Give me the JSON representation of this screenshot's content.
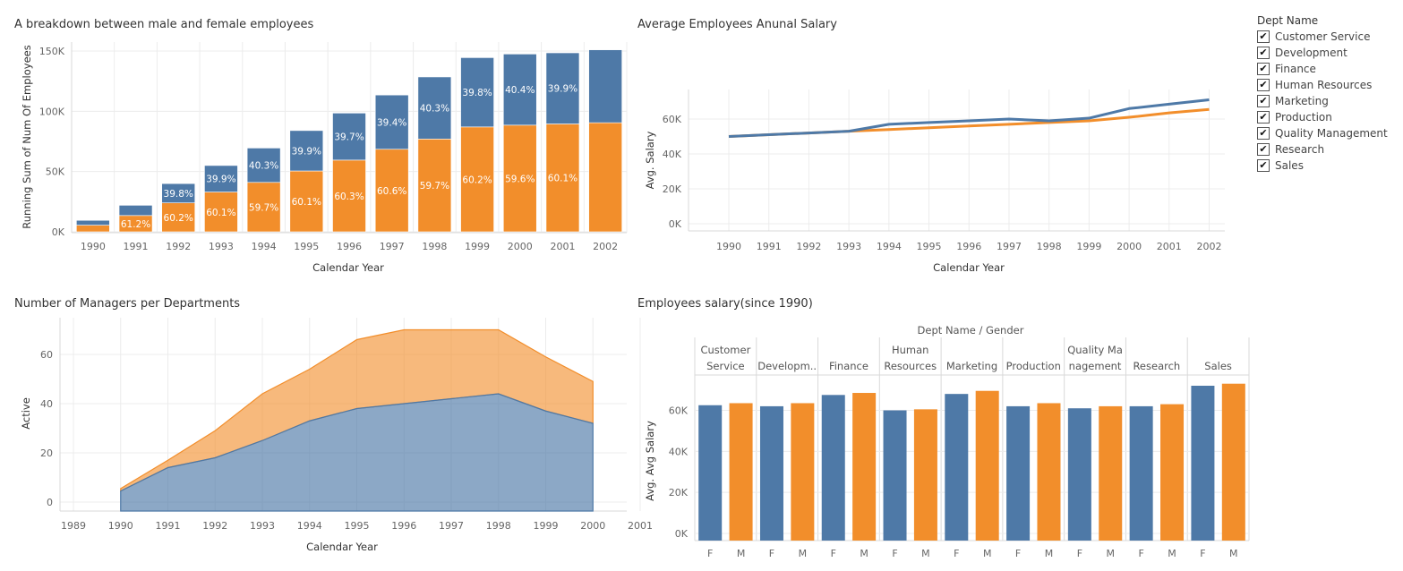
{
  "colors": {
    "female": "#4e79a7",
    "male": "#f28e2b",
    "grid": "#ececec",
    "axis": "#d9d9d9"
  },
  "legend": {
    "title": "Dept Name",
    "items": [
      {
        "label": "Customer Service",
        "checked": true
      },
      {
        "label": "Development",
        "checked": true
      },
      {
        "label": "Finance",
        "checked": true
      },
      {
        "label": "Human Resources",
        "checked": true
      },
      {
        "label": "Marketing",
        "checked": true
      },
      {
        "label": "Production",
        "checked": true
      },
      {
        "label": "Quality Management",
        "checked": true
      },
      {
        "label": "Research",
        "checked": true
      },
      {
        "label": "Sales",
        "checked": true
      }
    ],
    "check_glyph": "✔"
  },
  "chart_data": [
    {
      "id": "gender-breakdown",
      "type": "bar",
      "stacked": true,
      "title": "A breakdown between male and female employees",
      "xlabel": "Calendar Year",
      "ylabel": "Running Sum of Num Of Employees",
      "ylim": [
        0,
        150000
      ],
      "yticks": [
        {
          "v": 0,
          "label": "0K"
        },
        {
          "v": 50000,
          "label": "50K"
        },
        {
          "v": 100000,
          "label": "100K"
        },
        {
          "v": 150000,
          "label": "150K"
        }
      ],
      "grid": true,
      "categories": [
        "1990",
        "1991",
        "1992",
        "1993",
        "1994",
        "1995",
        "1996",
        "1997",
        "1998",
        "1999",
        "2000",
        "2001",
        "2002"
      ],
      "series": [
        {
          "key": "male",
          "values": [
            5500,
            13500,
            24000,
            33000,
            41000,
            50500,
            59500,
            68500,
            77000,
            87000,
            88500,
            89500,
            90500
          ],
          "labels": [
            "",
            "61.2%",
            "60.2%",
            "60.1%",
            "59.7%",
            "60.1%",
            "60.3%",
            "60.6%",
            "59.7%",
            "60.2%",
            "59.6%",
            "60.1%",
            ""
          ]
        },
        {
          "key": "female",
          "values": [
            4000,
            8500,
            16000,
            22000,
            28500,
            33500,
            39000,
            45000,
            51500,
            57500,
            59000,
            59000,
            60500
          ],
          "labels": [
            "",
            "",
            "39.8%",
            "39.9%",
            "40.3%",
            "39.9%",
            "39.7%",
            "39.4%",
            "40.3%",
            "39.8%",
            "40.4%",
            "39.9%",
            ""
          ]
        }
      ]
    },
    {
      "id": "avg-salary",
      "type": "line",
      "title": "Average Employees Anunal Salary",
      "xlabel": "Calendar Year",
      "ylabel": "Avg. Salary",
      "ylim": [
        0,
        70000
      ],
      "yticks": [
        {
          "v": 0,
          "label": "0K"
        },
        {
          "v": 20000,
          "label": "20K"
        },
        {
          "v": 40000,
          "label": "40K"
        },
        {
          "v": 60000,
          "label": "60K"
        }
      ],
      "grid": true,
      "x": [
        "1990",
        "1991",
        "1992",
        "1993",
        "1994",
        "1995",
        "1996",
        "1997",
        "1998",
        "1999",
        "2000",
        "2001",
        "2002"
      ],
      "series": [
        {
          "key": "female",
          "values": [
            50000,
            51000,
            52000,
            53000,
            57000,
            58000,
            59000,
            60000,
            59000,
            60500,
            66000,
            68500,
            71000
          ]
        },
        {
          "key": "male",
          "values": [
            50000,
            51000,
            52000,
            53000,
            54000,
            55000,
            56000,
            57000,
            58000,
            59000,
            61000,
            63500,
            65500
          ]
        }
      ]
    },
    {
      "id": "managers",
      "type": "area",
      "stacked": true,
      "title": "Number of Managers per Departments",
      "xlabel": "Calendar Year",
      "ylabel": "Active",
      "ylim": [
        -2,
        72
      ],
      "yticks": [
        {
          "v": 0,
          "label": "0"
        },
        {
          "v": 20,
          "label": "20"
        },
        {
          "v": 40,
          "label": "40"
        },
        {
          "v": 60,
          "label": "60"
        }
      ],
      "grid": true,
      "x_ticks": [
        "1989",
        "1990",
        "1991",
        "1992",
        "1993",
        "1994",
        "1995",
        "1996",
        "1997",
        "1998",
        "1999",
        "2000",
        "2001"
      ],
      "x": [
        "1990",
        "1991",
        "1992",
        "1993",
        "1994",
        "1995",
        "1996",
        "1997",
        "1998",
        "1999",
        "2000"
      ],
      "series": [
        {
          "key": "female",
          "values": [
            4.5,
            14,
            18,
            25,
            33,
            38,
            40,
            42,
            44,
            37,
            32
          ]
        },
        {
          "key": "male",
          "values": [
            1,
            3,
            11,
            19,
            21,
            28,
            30,
            28,
            26,
            22,
            17
          ]
        }
      ]
    },
    {
      "id": "dept-salary",
      "type": "bar",
      "title": "Employees salary(since 1990)",
      "header": "Dept Name  /  Gender",
      "ylabel": "Avg. Avg Salary",
      "ylim": [
        0,
        70000
      ],
      "yticks": [
        {
          "v": 0,
          "label": "0K"
        },
        {
          "v": 20000,
          "label": "20K"
        },
        {
          "v": 40000,
          "label": "40K"
        },
        {
          "v": 60000,
          "label": "60K"
        }
      ],
      "grid": true,
      "genders": [
        "F",
        "M"
      ],
      "departments": [
        {
          "lines": [
            "Customer",
            "Service"
          ],
          "values": [
            62500,
            63500
          ]
        },
        {
          "lines": [
            "Developm.."
          ],
          "values": [
            62000,
            63500
          ]
        },
        {
          "lines": [
            "Finance"
          ],
          "values": [
            67500,
            68500
          ]
        },
        {
          "lines": [
            "Human",
            "Resources"
          ],
          "values": [
            60000,
            60500
          ]
        },
        {
          "lines": [
            "Marketing"
          ],
          "values": [
            68000,
            69500
          ]
        },
        {
          "lines": [
            "Production"
          ],
          "values": [
            62000,
            63500
          ]
        },
        {
          "lines": [
            "Quality Ma",
            "nagement"
          ],
          "values": [
            61000,
            62000
          ]
        },
        {
          "lines": [
            "Research"
          ],
          "values": [
            62000,
            63000
          ]
        },
        {
          "lines": [
            "Sales"
          ],
          "values": [
            72000,
            73000
          ]
        }
      ]
    }
  ]
}
